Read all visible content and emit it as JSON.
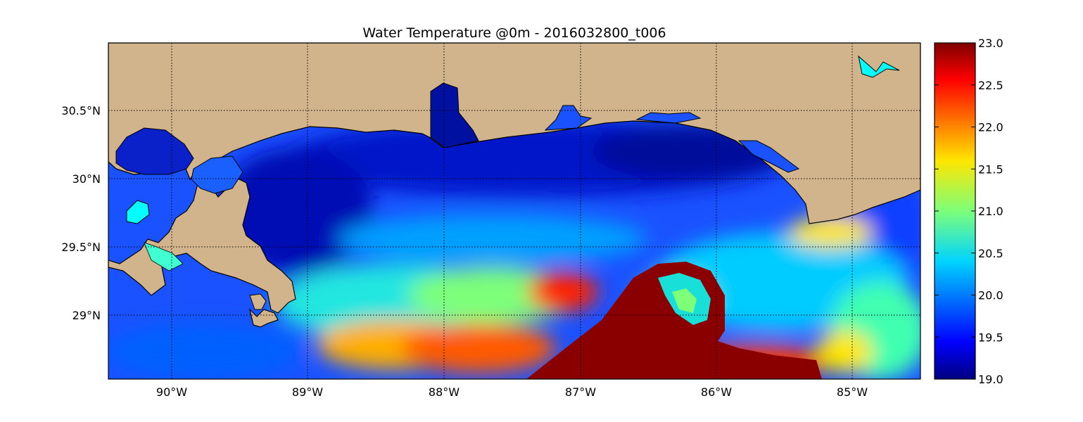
{
  "title": "Water Temperature @0m - 2016032800_t006",
  "map": {
    "lon_range": [
      -90.5,
      -84.5
    ],
    "lat_range": [
      28.55,
      31.0
    ],
    "lon_ticks": [
      {
        "value": -90,
        "label": "90°W"
      },
      {
        "value": -89,
        "label": "89°W"
      },
      {
        "value": -88,
        "label": "88°W"
      },
      {
        "value": -87,
        "label": "87°W"
      },
      {
        "value": -86,
        "label": "86°W"
      },
      {
        "value": -85,
        "label": "85°W"
      }
    ],
    "lat_ticks": [
      {
        "value": 30.5,
        "label": "30.5°N"
      },
      {
        "value": 30.0,
        "label": "30°N"
      },
      {
        "value": 29.5,
        "label": "29.5°N"
      },
      {
        "value": 29.0,
        "label": "29°N"
      }
    ],
    "grid": "dotted",
    "land_color": "#d2b48c",
    "coastline_color": "#000000"
  },
  "colorbar": {
    "min": 19.0,
    "max": 23.0,
    "colormap": "jet",
    "ticks": [
      "19.0",
      "19.5",
      "20.0",
      "20.5",
      "21.0",
      "21.5",
      "22.0",
      "22.5",
      "23.0"
    ]
  }
}
